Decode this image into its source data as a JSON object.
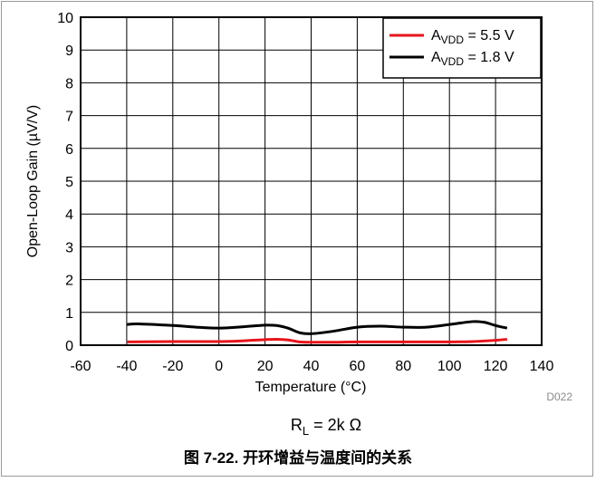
{
  "chart_data": {
    "type": "line",
    "xlabel": "Temperature (°C)",
    "ylabel": "Open-Loop Gain (µV/V)",
    "xlim": [
      -60,
      140
    ],
    "ylim": [
      0,
      10
    ],
    "x_ticks": [
      -60,
      -40,
      -20,
      0,
      20,
      40,
      60,
      80,
      100,
      120,
      140
    ],
    "y_ticks": [
      0,
      1,
      2,
      3,
      4,
      5,
      6,
      7,
      8,
      9,
      10
    ],
    "grid": true,
    "legend_position": "top-right",
    "series": [
      {
        "name_main": "A",
        "name_sub": "VDD",
        "name_value": " = 5.5 V",
        "color": "#e8141b",
        "x": [
          -40,
          -20,
          0,
          10,
          20,
          25,
          30,
          35,
          40,
          50,
          60,
          80,
          100,
          110,
          120,
          125
        ],
        "y": [
          0.1,
          0.11,
          0.11,
          0.13,
          0.17,
          0.18,
          0.16,
          0.1,
          0.09,
          0.09,
          0.1,
          0.1,
          0.1,
          0.11,
          0.15,
          0.18
        ]
      },
      {
        "name_main": "A",
        "name_sub": "VDD",
        "name_value": " = 1.8 V",
        "color": "#000000",
        "x": [
          -40,
          -35,
          -20,
          -10,
          0,
          10,
          20,
          25,
          30,
          35,
          40,
          50,
          60,
          70,
          80,
          90,
          100,
          110,
          115,
          120,
          125
        ],
        "y": [
          0.63,
          0.65,
          0.6,
          0.55,
          0.52,
          0.56,
          0.61,
          0.6,
          0.52,
          0.38,
          0.35,
          0.43,
          0.55,
          0.58,
          0.55,
          0.55,
          0.63,
          0.72,
          0.7,
          0.6,
          0.52
        ]
      }
    ]
  },
  "figure_code": "D022",
  "condition": {
    "main": "R",
    "sub": "L",
    "value": " = 2k Ω"
  },
  "caption": "图 7-22. 开环增益与温度间的关系"
}
